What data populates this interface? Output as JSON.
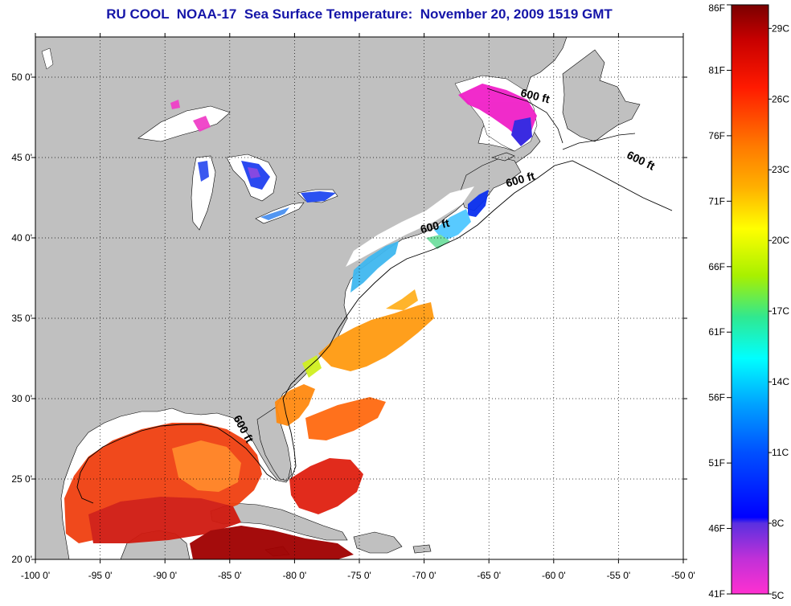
{
  "title": "RU COOL  NOAA-17  Sea Surface Temperature:  November 20, 2009 1519 GMT",
  "map": {
    "lon_range": [
      -100,
      -50
    ],
    "lat_range": [
      20,
      52.5
    ],
    "lon_ticks": [
      "-100 0'",
      "-95 0'",
      "-90 0'",
      "-85 0'",
      "-80 0'",
      "-75 0'",
      "-70 0'",
      "-65 0'",
      "-60 0'",
      "-55 0'",
      "-50 0'"
    ],
    "lat_ticks": [
      "20 0'",
      "25 0'",
      "30 0'",
      "35 0'",
      "40 0'",
      "45 0'",
      "50 0'"
    ],
    "grid": "dotted",
    "land_color": "#c0c0c0",
    "no_data_color": "#ffffff",
    "contour_label": "600 ft",
    "contour_label_positions": [
      [
        -61.5,
        48.6
      ],
      [
        -62.5,
        43.4
      ],
      [
        -53.4,
        44.6
      ],
      [
        -69.1,
        40.5
      ],
      [
        -84.2,
        28.0
      ]
    ]
  },
  "colorbar": {
    "range_c": [
      5,
      30
    ],
    "range_f": [
      41,
      86
    ],
    "f_labels": [
      "86F",
      "81F",
      "76F",
      "71F",
      "66F",
      "61F",
      "56F",
      "51F",
      "46F",
      "41F"
    ],
    "c_labels": [
      "29C",
      "26C",
      "23C",
      "20C",
      "17C",
      "14C",
      "11C",
      "8C",
      "5C"
    ],
    "c_values": [
      29,
      26,
      23,
      20,
      17,
      14,
      11,
      8,
      5
    ]
  }
}
